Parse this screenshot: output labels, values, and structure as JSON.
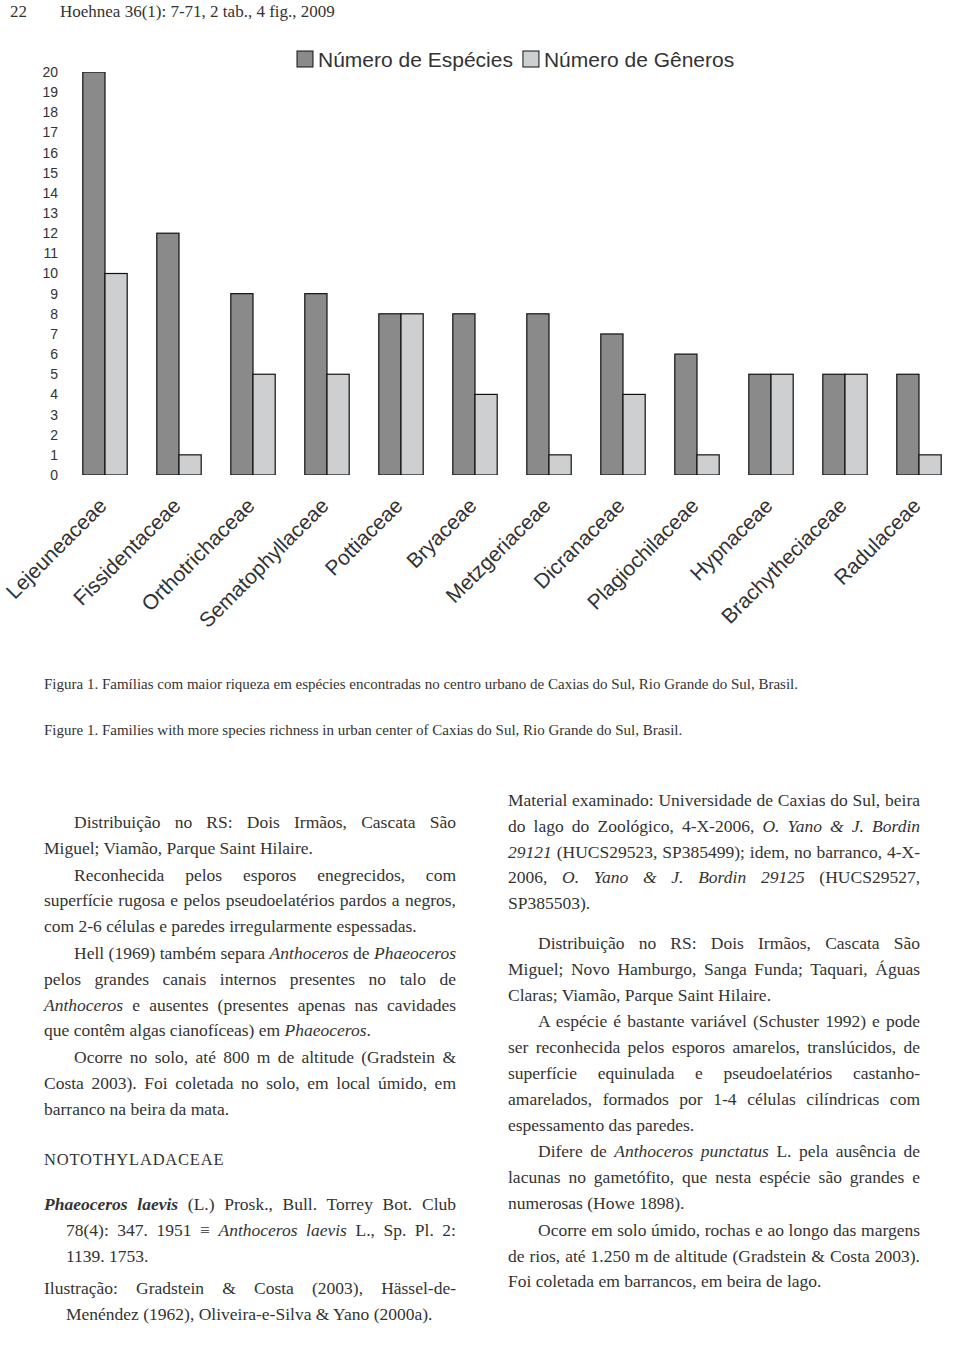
{
  "header": {
    "page": "22",
    "journal": "Hoehnea 36(1): 7-71, 2 tab., 4 fig., 2009"
  },
  "chart_data": {
    "type": "bar",
    "categories": [
      "Lejeuneaceae",
      "Fissidentaceae",
      "Orthotrichaceae",
      "Sematophyllaceae",
      "Pottiaceae",
      "Bryaceae",
      "Metzgeriaceae",
      "Dicranaceae",
      "Plagiochilaceae",
      "Hypnaceae",
      "Brachytheciaceae",
      "Radulaceae"
    ],
    "series": [
      {
        "name": "Número de Espécies",
        "color": "#8a8a8a",
        "values": [
          20,
          12,
          9,
          9,
          8,
          8,
          8,
          7,
          6,
          5,
          5,
          5
        ]
      },
      {
        "name": "Número de Gêneros",
        "color": "#cdcfd1",
        "values": [
          10,
          1,
          5,
          5,
          8,
          4,
          1,
          4,
          1,
          5,
          5,
          1
        ]
      }
    ],
    "ylim": [
      0,
      20
    ],
    "yticks": [
      0,
      1,
      2,
      3,
      4,
      5,
      6,
      7,
      8,
      9,
      10,
      11,
      12,
      13,
      14,
      15,
      16,
      17,
      18,
      19,
      20
    ],
    "legend": "top"
  },
  "captions": [
    "Figura 1. Famílias com maior riqueza em espécies encontradas no centro urbano de Caxias do Sul, Rio Grande do Sul, Brasil.",
    "Figure 1. Families with more species richness in urban center of Caxias do Sul, Rio Grande do Sul, Brasil."
  ],
  "columns": [
    {
      "paragraphs": [
        {
          "indented": [
            {
              "text": "Distribuição no RS: Dois Irmãos, Cascata São Miguel; Viamão, Parque Saint Hilaire."
            }
          ]
        },
        {
          "indented": [
            {
              "text": "Reconhecida pelos esporos enegrecidos, com superfície rugosa e pelos pseudoelatérios pardos a negros, com 2-6 células e paredes irregularmente espessadas."
            }
          ]
        },
        {
          "indented": [
            {
              "text": "Hell (1969) também separa "
            },
            {
              "text": "Anthoceros",
              "style": "italic"
            },
            {
              "text": " de "
            },
            {
              "text": "Phaeoceros",
              "style": "italic"
            },
            {
              "text": " pelos grandes canais internos presentes no talo de "
            },
            {
              "text": "Anthoceros",
              "style": "italic"
            },
            {
              "text": " e ausentes (presentes apenas nas cavidades que contêm algas cianofíceas) em "
            },
            {
              "text": "Phaeoceros",
              "style": "italic"
            },
            {
              "text": "."
            }
          ]
        },
        {
          "indented": [
            {
              "text": "Ocorre no solo, até 800 m de altitude (Gradstein & Costa 2003). Foi coletada no solo, em local úmido, em barranco na beira da mata."
            }
          ]
        },
        {
          "heading": "NOTOTHYLADACEAE"
        },
        {
          "hanging": [
            {
              "text": "Phaeoceros laevis",
              "style": "bold-italic"
            },
            {
              "text": " (L.) Prosk., Bull. Torrey Bot. Club 78(4): 347. 1951 ≡ "
            },
            {
              "text": "Anthoceros laevis",
              "style": "italic"
            },
            {
              "text": " L., Sp. Pl. 2: 1139. 1753."
            }
          ]
        },
        {
          "hanging": [
            {
              "text": "Ilustração: Gradstein & Costa (2003), Hässel-de-Menéndez (1962), Oliveira-e-Silva & Yano (2000a)."
            }
          ]
        }
      ]
    },
    {
      "paragraphs": [
        {
          "flush": [
            {
              "text": "Material examinado: Universidade de Caxias do Sul, beira do lago do Zoológico, 4-X-2006, "
            },
            {
              "text": "O. Yano & J. Bordin 29121",
              "style": "italic"
            },
            {
              "text": " (HUCS29523, SP385499); idem, no barranco, 4-X-2006, "
            },
            {
              "text": "O. Yano & J. Bordin 29125",
              "style": "italic"
            },
            {
              "text": " (HUCS29527, SP385503)."
            }
          ]
        },
        {
          "indented": [
            {
              "text": "Distribuição no RS: Dois Irmãos, Cascata São Miguel; Novo Hamburgo, Sanga Funda; Taquari, Águas Claras; Viamão, Parque Saint Hilaire."
            }
          ]
        },
        {
          "indented": [
            {
              "text": "A espécie é bastante variável (Schuster 1992) e pode ser reconhecida pelos esporos amarelos, translúcidos, de superfície equinulada e pseudoelatérios castanho-amarelados, formados por 1-4 células cilíndricas com espessamento das paredes."
            }
          ]
        },
        {
          "indented": [
            {
              "text": "Difere de "
            },
            {
              "text": "Anthoceros punctatus",
              "style": "italic"
            },
            {
              "text": " L. pela ausência de lacunas no gametófito, que nesta espécie são grandes e numerosas (Howe 1898)."
            }
          ]
        },
        {
          "indented": [
            {
              "text": "Ocorre em solo úmido, rochas e ao longo das margens de rios, até 1.250 m de altitude (Gradstein & Costa 2003). Foi coletada em barrancos, em beira de lago."
            }
          ]
        }
      ]
    }
  ]
}
